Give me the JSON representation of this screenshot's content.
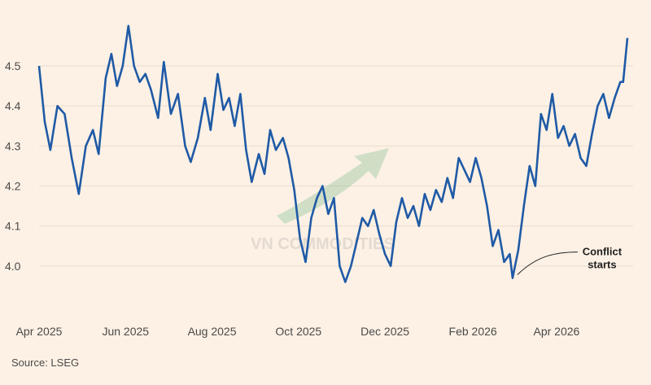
{
  "chart_data": {
    "type": "line",
    "title": "",
    "xlabel": "",
    "ylabel": "",
    "ylim": [
      3.9,
      4.62
    ],
    "yticks": [
      4.0,
      4.1,
      4.2,
      4.3,
      4.4,
      4.5
    ],
    "ytick_labels": [
      "4.0",
      "4.1",
      "4.2",
      "4.3",
      "4.4",
      "4.5"
    ],
    "xticks": [
      {
        "label": "Apr 2025",
        "date": "2025-04-01"
      },
      {
        "label": "Jun 2025",
        "date": "2025-06-01"
      },
      {
        "label": "Aug 2025",
        "date": "2025-08-01"
      },
      {
        "label": "Oct 2025",
        "date": "2025-10-01"
      },
      {
        "label": "Dec 2025",
        "date": "2025-12-01"
      },
      {
        "label": "Feb 2026",
        "date": "2026-02-01"
      },
      {
        "label": "Apr 2026",
        "date": "2026-04-01"
      }
    ],
    "grid": true,
    "line_color": "#1f5aa6",
    "series": [
      {
        "name": "",
        "points": [
          [
            "2025-04-01",
            4.5
          ],
          [
            "2025-04-05",
            4.36
          ],
          [
            "2025-04-09",
            4.29
          ],
          [
            "2025-04-14",
            4.4
          ],
          [
            "2025-04-19",
            4.38
          ],
          [
            "2025-04-24",
            4.27
          ],
          [
            "2025-04-29",
            4.18
          ],
          [
            "2025-05-04",
            4.3
          ],
          [
            "2025-05-09",
            4.34
          ],
          [
            "2025-05-13",
            4.28
          ],
          [
            "2025-05-18",
            4.47
          ],
          [
            "2025-05-22",
            4.53
          ],
          [
            "2025-05-26",
            4.45
          ],
          [
            "2025-05-30",
            4.5
          ],
          [
            "2025-06-03",
            4.6
          ],
          [
            "2025-06-07",
            4.5
          ],
          [
            "2025-06-11",
            4.46
          ],
          [
            "2025-06-15",
            4.48
          ],
          [
            "2025-06-19",
            4.44
          ],
          [
            "2025-06-24",
            4.37
          ],
          [
            "2025-06-28",
            4.51
          ],
          [
            "2025-07-03",
            4.38
          ],
          [
            "2025-07-08",
            4.43
          ],
          [
            "2025-07-13",
            4.3
          ],
          [
            "2025-07-17",
            4.26
          ],
          [
            "2025-07-22",
            4.32
          ],
          [
            "2025-07-27",
            4.42
          ],
          [
            "2025-07-31",
            4.34
          ],
          [
            "2025-08-05",
            4.48
          ],
          [
            "2025-08-09",
            4.39
          ],
          [
            "2025-08-13",
            4.42
          ],
          [
            "2025-08-17",
            4.35
          ],
          [
            "2025-08-21",
            4.43
          ],
          [
            "2025-08-25",
            4.29
          ],
          [
            "2025-08-29",
            4.21
          ],
          [
            "2025-09-03",
            4.28
          ],
          [
            "2025-09-07",
            4.23
          ],
          [
            "2025-09-11",
            4.34
          ],
          [
            "2025-09-15",
            4.29
          ],
          [
            "2025-09-20",
            4.32
          ],
          [
            "2025-09-24",
            4.27
          ],
          [
            "2025-09-28",
            4.19
          ],
          [
            "2025-10-02",
            4.07
          ],
          [
            "2025-10-06",
            4.01
          ],
          [
            "2025-10-10",
            4.12
          ],
          [
            "2025-10-14",
            4.17
          ],
          [
            "2025-10-18",
            4.2
          ],
          [
            "2025-10-22",
            4.13
          ],
          [
            "2025-10-26",
            4.17
          ],
          [
            "2025-10-30",
            4.0
          ],
          [
            "2025-11-03",
            3.96
          ],
          [
            "2025-11-07",
            4.0
          ],
          [
            "2025-11-11",
            4.06
          ],
          [
            "2025-11-15",
            4.12
          ],
          [
            "2025-11-19",
            4.1
          ],
          [
            "2025-11-23",
            4.14
          ],
          [
            "2025-11-27",
            4.08
          ],
          [
            "2025-12-01",
            4.03
          ],
          [
            "2025-12-05",
            4.0
          ],
          [
            "2025-12-09",
            4.11
          ],
          [
            "2025-12-13",
            4.17
          ],
          [
            "2025-12-17",
            4.12
          ],
          [
            "2025-12-21",
            4.15
          ],
          [
            "2025-12-25",
            4.1
          ],
          [
            "2025-12-29",
            4.18
          ],
          [
            "2026-01-02",
            4.14
          ],
          [
            "2026-01-06",
            4.19
          ],
          [
            "2026-01-10",
            4.16
          ],
          [
            "2026-01-14",
            4.22
          ],
          [
            "2026-01-18",
            4.17
          ],
          [
            "2026-01-22",
            4.27
          ],
          [
            "2026-01-26",
            4.24
          ],
          [
            "2026-01-30",
            4.21
          ],
          [
            "2026-02-03",
            4.27
          ],
          [
            "2026-02-07",
            4.22
          ],
          [
            "2026-02-11",
            4.15
          ],
          [
            "2026-02-15",
            4.05
          ],
          [
            "2026-02-19",
            4.09
          ],
          [
            "2026-02-23",
            4.01
          ],
          [
            "2026-02-27",
            4.03
          ],
          [
            "2026-03-01",
            3.97
          ],
          [
            "2026-03-05",
            4.04
          ],
          [
            "2026-03-09",
            4.15
          ],
          [
            "2026-03-13",
            4.25
          ],
          [
            "2026-03-17",
            4.2
          ],
          [
            "2026-03-21",
            4.38
          ],
          [
            "2026-03-25",
            4.34
          ],
          [
            "2026-03-29",
            4.43
          ],
          [
            "2026-04-02",
            4.32
          ],
          [
            "2026-04-06",
            4.35
          ],
          [
            "2026-04-10",
            4.3
          ],
          [
            "2026-04-14",
            4.33
          ],
          [
            "2026-04-18",
            4.27
          ],
          [
            "2026-04-22",
            4.25
          ],
          [
            "2026-04-26",
            4.33
          ],
          [
            "2026-04-30",
            4.4
          ],
          [
            "2026-05-04",
            4.43
          ],
          [
            "2026-05-08",
            4.37
          ],
          [
            "2026-05-12",
            4.42
          ],
          [
            "2026-05-16",
            4.46
          ],
          [
            "2026-05-18",
            4.46
          ],
          [
            "2026-05-21",
            4.57
          ]
        ]
      }
    ],
    "annotations": [
      {
        "text_lines": [
          "Conflict",
          "starts"
        ],
        "date": "2026-03-01",
        "value": 3.97
      }
    ],
    "watermark": "VN COMMODITIES"
  },
  "footer": {
    "source": "Source: LSEG"
  }
}
